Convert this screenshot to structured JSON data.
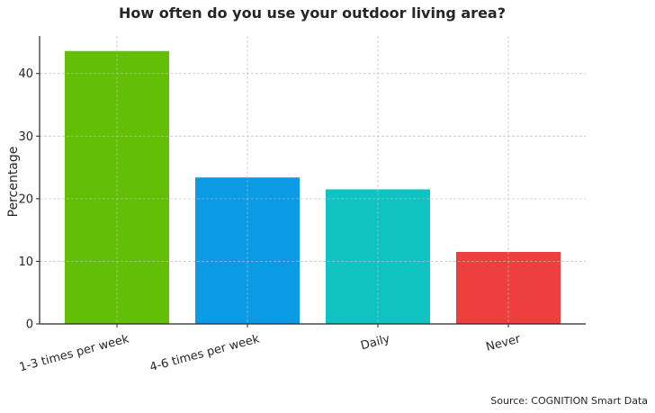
{
  "chart_data": {
    "type": "bar",
    "title": "How often do you use your outdoor living area?",
    "xlabel": "",
    "ylabel": "Percentage",
    "categories": [
      "1-3 times per week",
      "4-6 times per week",
      "Daily",
      "Never"
    ],
    "values": [
      43.6,
      23.4,
      21.5,
      11.5
    ],
    "colors": [
      "#62bf06",
      "#0b9be4",
      "#10c3c3",
      "#ee3f3f"
    ],
    "ylim": [
      0,
      46
    ],
    "yticks": [
      0,
      10,
      20,
      30,
      40
    ],
    "grid": true,
    "legend": "none"
  },
  "source": "Source: COGNITION Smart Data"
}
